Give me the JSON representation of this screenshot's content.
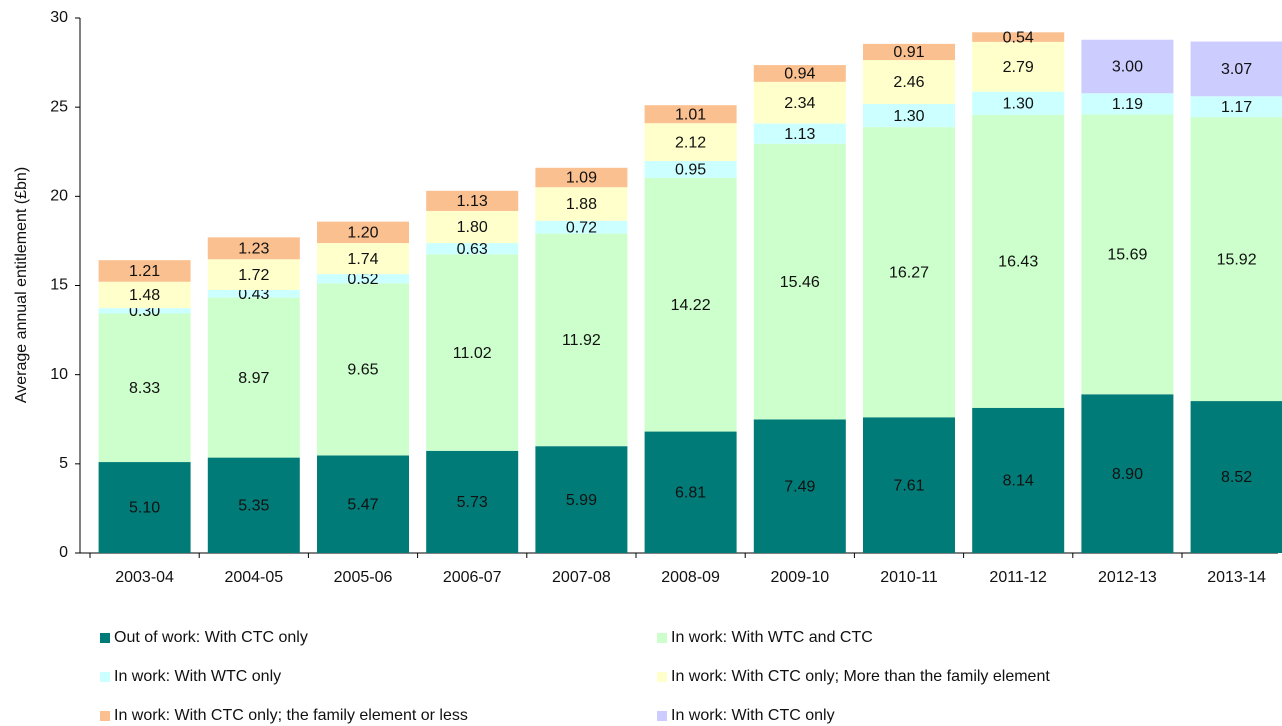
{
  "chart_data": {
    "type": "stacked_bar",
    "y_label": "Average annual entitlement  (£bn)",
    "categories": [
      "2003-04",
      "2004-05",
      "2005-06",
      "2006-07",
      "2007-08",
      "2008-09",
      "2009-10",
      "2010-11",
      "2011-12",
      "2012-13",
      "2013-14"
    ],
    "series": [
      {
        "name": "Out of work: With CTC only",
        "color": "#007b77",
        "values": [
          5.1,
          5.35,
          5.47,
          5.73,
          5.99,
          6.81,
          7.49,
          7.61,
          8.14,
          8.9,
          8.52
        ],
        "value_labels": [
          "5.10",
          "5.35",
          "5.47",
          "5.73",
          "5.99",
          "6.81",
          "7.49",
          "7.61",
          "8.14",
          "8.90",
          "8.52"
        ]
      },
      {
        "name": "In work: With WTC and CTC",
        "color": "#ccffcc",
        "values": [
          8.33,
          8.97,
          9.65,
          11.02,
          11.92,
          14.22,
          15.46,
          16.27,
          16.43,
          15.69,
          15.92
        ],
        "value_labels": [
          "8.33",
          "8.97",
          "9.65",
          "11.02",
          "11.92",
          "14.22",
          "15.46",
          "16.27",
          "16.43",
          "15.69",
          "15.92"
        ]
      },
      {
        "name": "In work: With WTC only",
        "color": "#ccffff",
        "values": [
          0.3,
          0.43,
          0.52,
          0.63,
          0.72,
          0.95,
          1.13,
          1.3,
          1.3,
          1.19,
          1.17
        ],
        "value_labels": [
          "0.30",
          "0.43",
          "0.52",
          "0.63",
          "0.72",
          "0.95",
          "1.13",
          "1.30",
          "1.30",
          "1.19",
          "1.17"
        ]
      },
      {
        "name": "In work: With CTC only; More than the family element",
        "color": "#ffffcc",
        "values": [
          1.48,
          1.72,
          1.74,
          1.8,
          1.88,
          2.12,
          2.34,
          2.46,
          2.79,
          null,
          null
        ],
        "value_labels": [
          "1.48",
          "1.72",
          "1.74",
          "1.80",
          "1.88",
          "2.12",
          "2.34",
          "2.46",
          "2.79",
          null,
          null
        ]
      },
      {
        "name": "In work: With CTC only; the family element or less",
        "color": "#fac090",
        "values": [
          1.21,
          1.23,
          1.2,
          1.13,
          1.09,
          1.01,
          0.94,
          0.91,
          0.54,
          null,
          null
        ],
        "value_labels": [
          "1.21",
          "1.23",
          "1.20",
          "1.13",
          "1.09",
          "1.01",
          "0.94",
          "0.91",
          "0.54",
          null,
          null
        ]
      },
      {
        "name": "In work: With CTC only",
        "color": "#ccccff",
        "values": [
          null,
          null,
          null,
          null,
          null,
          null,
          null,
          null,
          null,
          3.0,
          3.07
        ],
        "value_labels": [
          null,
          null,
          null,
          null,
          null,
          null,
          null,
          null,
          null,
          "3.00",
          "3.07"
        ]
      }
    ],
    "ylim": [
      0,
      30
    ],
    "yticks": [
      0,
      5,
      10,
      15,
      20,
      25,
      30
    ],
    "grid": false
  }
}
